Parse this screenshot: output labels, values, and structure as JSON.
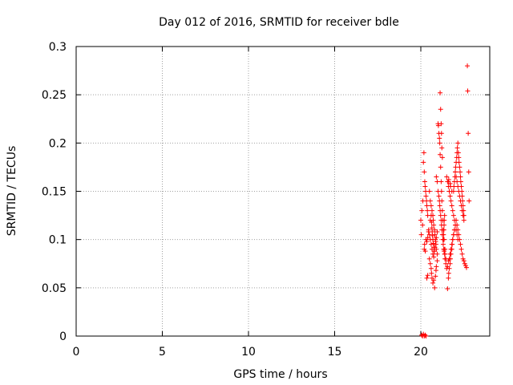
{
  "chart_data": {
    "type": "scatter",
    "title": "Day 012 of 2016, SRMTID for receiver bdle",
    "xlabel": "GPS time / hours",
    "ylabel": "SRMTID / TECUs",
    "xlim": [
      0,
      24
    ],
    "ylim": [
      0,
      0.3
    ],
    "xticks": [
      0,
      5,
      10,
      15,
      20
    ],
    "xtick_labels": [
      "0",
      "5",
      "10",
      "15",
      "20"
    ],
    "yticks": [
      0,
      0.05,
      0.1,
      0.15,
      0.2,
      0.25,
      0.3
    ],
    "ytick_labels": [
      "0",
      "0.05",
      "0.1",
      "0.15",
      "0.2",
      "0.25",
      "0.3"
    ],
    "grid": true,
    "marker": "+",
    "color": "#ff0000",
    "series": [
      {
        "x": [
          20.0,
          20.03,
          20.06,
          20.1,
          20.12,
          20.15,
          20.18,
          20.2,
          20.23,
          20.25,
          20.28,
          20.3,
          20.33,
          20.35,
          20.38,
          20.4,
          20.2,
          20.22,
          20.26,
          20.3,
          20.35,
          20.4,
          20.5,
          20.55,
          20.6,
          20.65,
          20.7,
          20.72,
          20.75,
          20.8,
          20.82,
          20.85,
          20.88,
          20.9,
          20.95,
          20.5,
          20.55,
          20.6,
          20.62,
          20.65,
          20.7,
          20.75,
          20.8,
          20.85,
          20.88,
          20.9,
          20.95,
          20.45,
          20.5,
          20.55,
          20.6,
          20.65,
          20.7,
          20.75,
          20.78,
          20.82,
          20.86,
          20.9,
          20.95,
          20.55,
          20.6,
          20.62,
          20.64,
          20.66,
          20.68,
          20.7,
          20.72,
          20.75,
          20.78,
          20.9,
          20.95,
          21.0,
          21.05,
          21.08,
          21.1,
          21.12,
          21.15,
          21.18,
          21.2,
          21.22,
          21.25,
          21.28,
          21.3,
          21.33,
          21.35,
          21.38,
          21.4,
          21.0,
          21.02,
          21.05,
          21.08,
          21.1,
          21.12,
          21.15,
          21.18,
          21.2,
          21.22,
          21.25,
          21.28,
          21.3,
          21.35,
          21.4,
          21.12,
          21.15,
          21.18,
          21.2,
          21.22,
          21.25,
          21.28,
          21.3,
          21.35,
          21.4,
          21.45,
          21.45,
          21.5,
          21.55,
          21.6,
          21.65,
          21.7,
          21.75,
          21.8,
          21.85,
          21.9,
          21.95,
          22.0,
          21.5,
          21.55,
          21.6,
          21.65,
          21.7,
          21.75,
          21.8,
          21.85,
          21.9,
          21.95,
          22.0,
          22.05,
          22.1,
          22.15,
          21.55,
          21.6,
          21.62,
          21.65,
          21.7,
          21.72,
          21.75,
          21.8,
          21.82,
          21.85,
          21.9,
          21.95,
          21.9,
          21.92,
          21.95,
          21.98,
          22.0,
          22.02,
          22.05,
          22.08,
          22.1,
          22.12,
          22.15,
          22.18,
          22.2,
          22.22,
          22.25,
          22.28,
          22.3,
          22.32,
          22.35,
          22.38,
          22.4,
          22.42,
          22.45,
          22.48,
          22.5,
          22.0,
          22.05,
          22.1,
          22.15,
          22.2,
          22.25,
          22.3,
          22.35,
          22.4,
          22.45,
          22.5,
          22.05,
          22.1,
          22.15,
          22.2,
          22.25,
          22.3,
          22.35,
          22.4,
          22.45,
          22.5,
          22.55,
          22.6,
          22.65,
          21.3,
          21.32,
          21.34,
          21.35,
          21.36,
          21.38,
          22.7,
          22.72,
          22.75,
          22.78,
          22.8,
          20.05,
          20.1,
          20.15,
          20.2,
          20.25,
          20.3,
          20.35,
          20.4,
          20.45,
          21.6,
          21.62,
          21.7,
          21.72,
          21.8
        ],
        "y": [
          0.12,
          0.105,
          0.13,
          0.115,
          0.14,
          0.18,
          0.19,
          0.17,
          0.16,
          0.155,
          0.15,
          0.145,
          0.14,
          0.135,
          0.13,
          0.125,
          0.09,
          0.095,
          0.088,
          0.1,
          0.06,
          0.063,
          0.15,
          0.14,
          0.135,
          0.13,
          0.125,
          0.12,
          0.115,
          0.11,
          0.105,
          0.1,
          0.095,
          0.09,
          0.085,
          0.08,
          0.075,
          0.07,
          0.065,
          0.06,
          0.055,
          0.058,
          0.05,
          0.062,
          0.068,
          0.072,
          0.078,
          0.11,
          0.105,
          0.1,
          0.095,
          0.09,
          0.085,
          0.082,
          0.088,
          0.092,
          0.098,
          0.102,
          0.108,
          0.12,
          0.125,
          0.118,
          0.112,
          0.108,
          0.104,
          0.1,
          0.096,
          0.092,
          0.088,
          0.165,
          0.16,
          0.15,
          0.145,
          0.14,
          0.135,
          0.13,
          0.125,
          0.12,
          0.115,
          0.11,
          0.105,
          0.1,
          0.095,
          0.09,
          0.088,
          0.085,
          0.08,
          0.22,
          0.218,
          0.21,
          0.205,
          0.2,
          0.188,
          0.175,
          0.16,
          0.15,
          0.14,
          0.13,
          0.12,
          0.11,
          0.1,
          0.09,
          0.252,
          0.235,
          0.22,
          0.21,
          0.195,
          0.185,
          0.12,
          0.1,
          0.09,
          0.085,
          0.08,
          0.075,
          0.07,
          0.072,
          0.078,
          0.08,
          0.085,
          0.09,
          0.095,
          0.1,
          0.105,
          0.11,
          0.115,
          0.165,
          0.16,
          0.155,
          0.15,
          0.145,
          0.14,
          0.135,
          0.13,
          0.125,
          0.12,
          0.115,
          0.11,
          0.105,
          0.1,
          0.049,
          0.06,
          0.065,
          0.07,
          0.075,
          0.08,
          0.085,
          0.09,
          0.095,
          0.1,
          0.105,
          0.11,
          0.15,
          0.155,
          0.16,
          0.165,
          0.17,
          0.175,
          0.18,
          0.185,
          0.19,
          0.195,
          0.2,
          0.19,
          0.185,
          0.18,
          0.175,
          0.17,
          0.165,
          0.16,
          0.155,
          0.15,
          0.145,
          0.14,
          0.135,
          0.13,
          0.125,
          0.17,
          0.165,
          0.16,
          0.155,
          0.15,
          0.145,
          0.14,
          0.135,
          0.13,
          0.125,
          0.12,
          0.12,
          0.115,
          0.11,
          0.105,
          0.1,
          0.095,
          0.09,
          0.085,
          0.08,
          0.078,
          0.075,
          0.073,
          0.071,
          0.1,
          0.105,
          0.11,
          0.115,
          0.12,
          0.125,
          0.28,
          0.254,
          0.21,
          0.17,
          0.14,
          0.001,
          0.0,
          0.002,
          0.0,
          0.001,
          0.0,
          0.098,
          0.102,
          0.108,
          0.16,
          0.162,
          0.158,
          0.155,
          0.15
        ]
      }
    ]
  }
}
